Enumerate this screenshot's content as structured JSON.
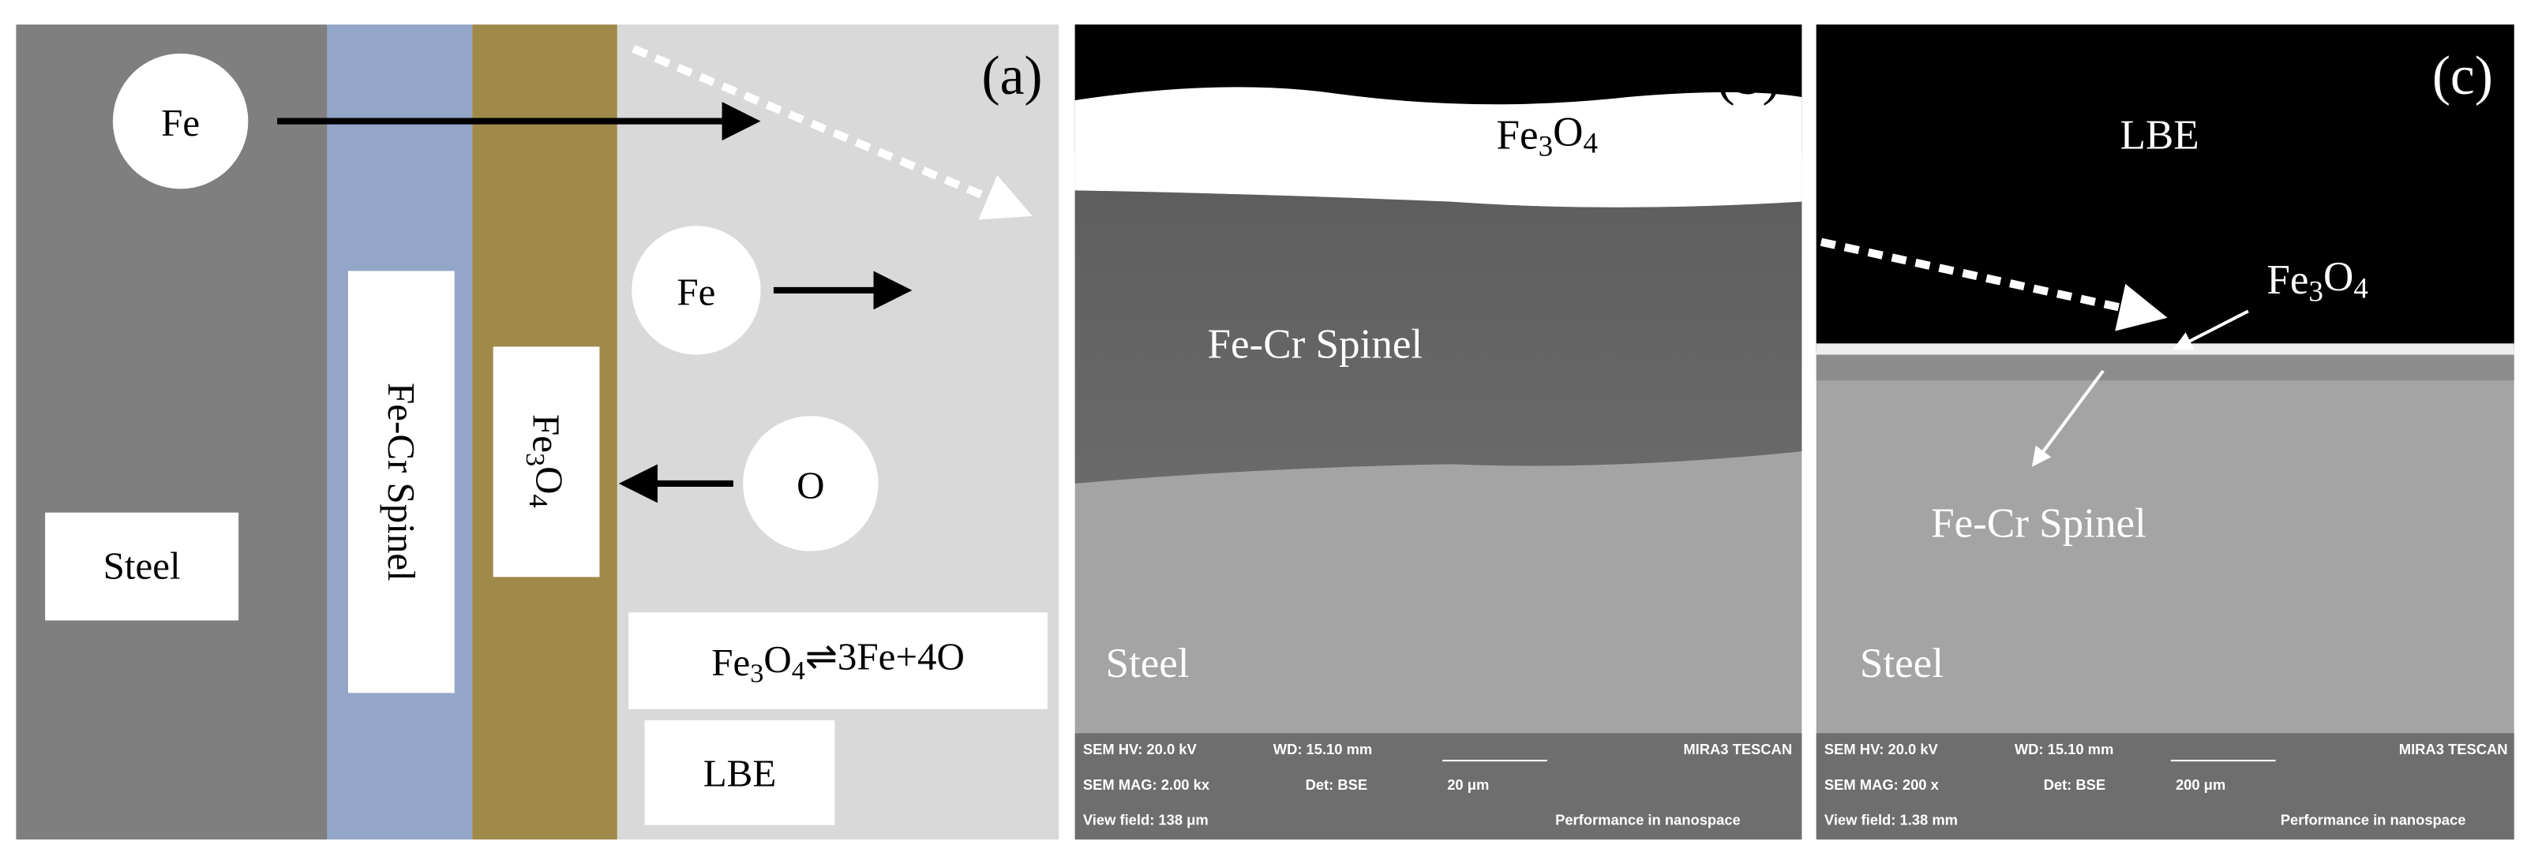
{
  "panel_a": {
    "label": "(a)",
    "fe_top": "Fe",
    "fe_mid": "Fe",
    "o": "O",
    "steel": "Steel",
    "spinel": "Fe-Cr Spinel",
    "magnetite": "Fe3O4",
    "equation": "Fe3O4⇌3Fe+4O",
    "lbe": "LBE"
  },
  "panel_b": {
    "label": "(b)",
    "magnetite": "Fe3O4",
    "spinel": "Fe-Cr Spinel",
    "steel": "Steel",
    "info": {
      "hv": "SEM HV: 20.0 kV",
      "wd": "WD: 15.10 mm",
      "brand": "MIRA3 TESCAN",
      "mag": "SEM MAG: 2.00 kx",
      "det": "Det: BSE",
      "scale": "20 μm",
      "view": "View field: 138 μm",
      "slogan": "Performance in nanospace"
    }
  },
  "panel_c": {
    "label": "(c)",
    "lbe": "LBE",
    "magnetite": "Fe3O4",
    "spinel": "Fe-Cr Spinel",
    "steel": "Steel",
    "info": {
      "hv": "SEM HV: 20.0 kV",
      "wd": "WD: 15.10 mm",
      "brand": "MIRA3 TESCAN",
      "mag": "SEM MAG: 200 x",
      "det": "Det: BSE",
      "scale": "200 μm",
      "view": "View field: 1.38 mm",
      "slogan": "Performance in nanospace"
    }
  }
}
